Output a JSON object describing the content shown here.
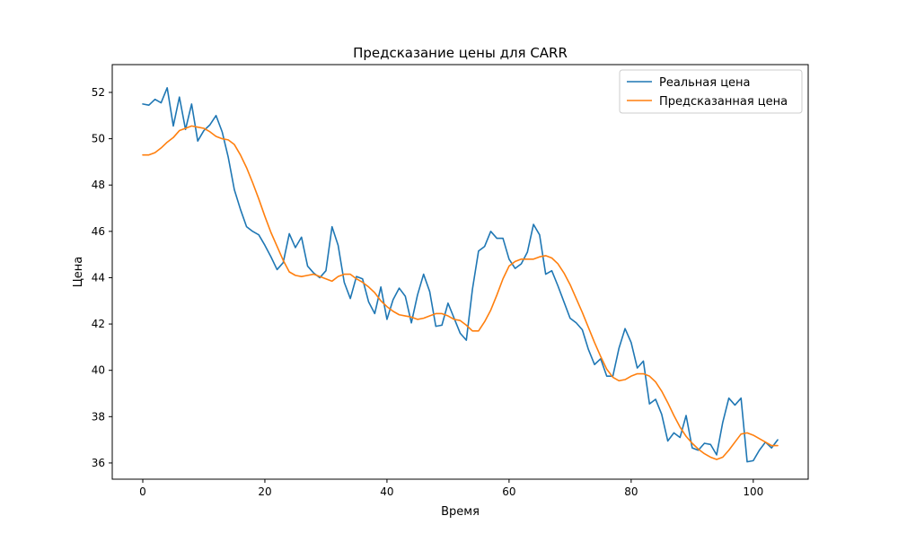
{
  "chart_data": {
    "type": "line",
    "title": "Предсказание цены для CARR",
    "xlabel": "Время",
    "ylabel": "Цена",
    "xlim": [
      -5,
      109
    ],
    "ylim": [
      35.3,
      53.2
    ],
    "x_ticks": [
      0,
      20,
      40,
      60,
      80,
      100
    ],
    "y_ticks": [
      36,
      38,
      40,
      42,
      44,
      46,
      48,
      50,
      52
    ],
    "grid": false,
    "legend_position": "top-right",
    "series": [
      {
        "name": "Реальная цена",
        "color": "#1f77b4",
        "x_start": 0,
        "x_step": 1,
        "values": [
          51.5,
          51.45,
          51.7,
          51.55,
          52.2,
          50.55,
          51.8,
          50.4,
          51.5,
          49.9,
          50.35,
          50.6,
          51.0,
          50.3,
          49.2,
          47.8,
          46.95,
          46.2,
          46.0,
          45.85,
          45.4,
          44.9,
          44.35,
          44.65,
          45.9,
          45.3,
          45.75,
          44.5,
          44.2,
          44.0,
          44.3,
          46.2,
          45.4,
          43.8,
          43.1,
          44.05,
          43.95,
          42.95,
          42.45,
          43.6,
          42.2,
          43.05,
          43.55,
          43.2,
          42.05,
          43.25,
          44.15,
          43.4,
          41.9,
          41.95,
          42.9,
          42.25,
          41.6,
          41.3,
          43.5,
          45.15,
          45.35,
          46.0,
          45.7,
          45.7,
          44.8,
          44.4,
          44.6,
          45.1,
          46.3,
          45.85,
          44.15,
          44.3,
          43.65,
          42.95,
          42.25,
          42.05,
          41.75,
          40.9,
          40.25,
          40.5,
          39.75,
          39.75,
          40.95,
          41.8,
          41.2,
          40.1,
          40.4,
          38.55,
          38.75,
          38.1,
          36.95,
          37.3,
          37.1,
          38.05,
          36.65,
          36.55,
          36.85,
          36.8,
          36.35,
          37.75,
          38.8,
          38.5,
          38.8,
          36.05,
          36.1,
          36.55,
          36.9,
          36.65,
          37.0
        ]
      },
      {
        "name": "Предсказанная цена",
        "color": "#ff7f0e",
        "x_start": 0,
        "x_step": 1,
        "values": [
          49.3,
          49.3,
          49.4,
          49.6,
          49.85,
          50.05,
          50.35,
          50.45,
          50.55,
          50.5,
          50.45,
          50.3,
          50.1,
          50.0,
          49.95,
          49.75,
          49.3,
          48.75,
          48.1,
          47.4,
          46.65,
          45.95,
          45.35,
          44.75,
          44.25,
          44.1,
          44.05,
          44.1,
          44.15,
          44.05,
          43.95,
          43.85,
          44.05,
          44.15,
          44.15,
          43.95,
          43.8,
          43.6,
          43.35,
          43.0,
          42.75,
          42.55,
          42.4,
          42.35,
          42.3,
          42.2,
          42.25,
          42.35,
          42.45,
          42.45,
          42.35,
          42.2,
          42.15,
          41.95,
          41.7,
          41.7,
          42.1,
          42.6,
          43.25,
          43.95,
          44.5,
          44.7,
          44.8,
          44.8,
          44.8,
          44.9,
          44.95,
          44.85,
          44.6,
          44.2,
          43.7,
          43.1,
          42.5,
          41.85,
          41.2,
          40.6,
          40.05,
          39.7,
          39.55,
          39.6,
          39.75,
          39.85,
          39.85,
          39.75,
          39.5,
          39.1,
          38.6,
          38.05,
          37.55,
          37.15,
          36.85,
          36.6,
          36.4,
          36.25,
          36.15,
          36.25,
          36.55,
          36.9,
          37.25,
          37.3,
          37.2,
          37.05,
          36.9,
          36.75,
          36.75
        ]
      }
    ]
  }
}
